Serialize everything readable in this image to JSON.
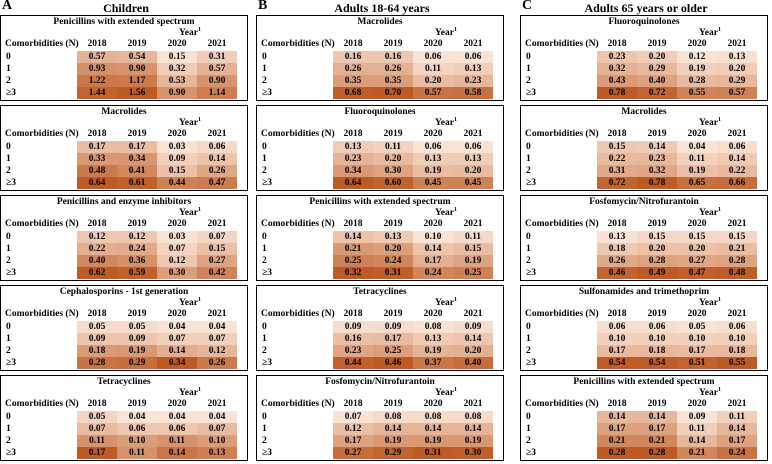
{
  "chart_data": {
    "type": "table",
    "row_header": "Comorbidities (N)",
    "years_label": "Year",
    "years_label_sup": "1",
    "years": [
      "2018",
      "2019",
      "2020",
      "2021"
    ],
    "row_labels": [
      "0",
      "1",
      "2",
      "≥3"
    ],
    "columns": [
      {
        "letter": "A",
        "title": "Children",
        "panels": [
          {
            "title": "Penicillins with extended spectrum",
            "values": [
              [
                "0.57",
                "0.54",
                "0.15",
                "0.31"
              ],
              [
                "0.93",
                "0.90",
                "0.32",
                "0.57"
              ],
              [
                "1.22",
                "1.17",
                "0.53",
                "0.90"
              ],
              [
                "1.44",
                "1.56",
                "0.90",
                "1.14"
              ]
            ]
          },
          {
            "title": "Macrolides",
            "values": [
              [
                "0.17",
                "0.17",
                "0.03",
                "0.06"
              ],
              [
                "0.33",
                "0.34",
                "0.09",
                "0.14"
              ],
              [
                "0.48",
                "0.41",
                "0.15",
                "0.26"
              ],
              [
                "0.64",
                "0.61",
                "0.44",
                "0.47"
              ]
            ]
          },
          {
            "title": "Penicillins and enzyme inhibitors",
            "values": [
              [
                "0.12",
                "0.12",
                "0.03",
                "0.07"
              ],
              [
                "0.22",
                "0.24",
                "0.07",
                "0.15"
              ],
              [
                "0.40",
                "0.36",
                "0.12",
                "0.27"
              ],
              [
                "0.62",
                "0.59",
                "0.30",
                "0.42"
              ]
            ]
          },
          {
            "title": "Cephalosporins - 1st generation",
            "values": [
              [
                "0.05",
                "0.05",
                "0.04",
                "0.04"
              ],
              [
                "0.09",
                "0.09",
                "0.07",
                "0.07"
              ],
              [
                "0.18",
                "0.19",
                "0.14",
                "0.12"
              ],
              [
                "0.28",
                "0.29",
                "0.34",
                "0.26"
              ]
            ]
          },
          {
            "title": "Tetracyclines",
            "values": [
              [
                "0.05",
                "0.04",
                "0.04",
                "0.04"
              ],
              [
                "0.07",
                "0.06",
                "0.06",
                "0.07"
              ],
              [
                "0.11",
                "0.10",
                "0.11",
                "0.10"
              ],
              [
                "0.17",
                "0.11",
                "0.14",
                "0.13"
              ]
            ]
          }
        ]
      },
      {
        "letter": "B",
        "title": "Adults 18-64 years",
        "panels": [
          {
            "title": "Macrolides",
            "values": [
              [
                "0.16",
                "0.16",
                "0.06",
                "0.06"
              ],
              [
                "0.26",
                "0.26",
                "0.11",
                "0.13"
              ],
              [
                "0.35",
                "0.35",
                "0.20",
                "0.23"
              ],
              [
                "0.68",
                "0.70",
                "0.57",
                "0.58"
              ]
            ]
          },
          {
            "title": "Fluoroquinolones",
            "values": [
              [
                "0.13",
                "0.11",
                "0.06",
                "0.06"
              ],
              [
                "0.23",
                "0.20",
                "0.13",
                "0.13"
              ],
              [
                "0.34",
                "0.30",
                "0.19",
                "0.20"
              ],
              [
                "0.64",
                "0.60",
                "0.45",
                "0.45"
              ]
            ]
          },
          {
            "title": "Penicillins with extended spectrum",
            "values": [
              [
                "0.14",
                "0.13",
                "0.10",
                "0.11"
              ],
              [
                "0.21",
                "0.20",
                "0.14",
                "0.15"
              ],
              [
                "0.25",
                "0.24",
                "0.17",
                "0.19"
              ],
              [
                "0.32",
                "0.31",
                "0.24",
                "0.25"
              ]
            ]
          },
          {
            "title": "Tetracyclines",
            "values": [
              [
                "0.09",
                "0.09",
                "0.08",
                "0.09"
              ],
              [
                "0.16",
                "0.17",
                "0.13",
                "0.14"
              ],
              [
                "0.23",
                "0.25",
                "0.19",
                "0.20"
              ],
              [
                "0.44",
                "0.46",
                "0.37",
                "0.40"
              ]
            ]
          },
          {
            "title": "Fosfomycin/Nitrofurantoin",
            "values": [
              [
                "0.07",
                "0.08",
                "0.08",
                "0.08"
              ],
              [
                "0.12",
                "0.14",
                "0.14",
                "0.14"
              ],
              [
                "0.17",
                "0.19",
                "0.19",
                "0.19"
              ],
              [
                "0.27",
                "0.29",
                "0.31",
                "0.30"
              ]
            ]
          }
        ]
      },
      {
        "letter": "C",
        "title": "Adults 65 years or older",
        "panels": [
          {
            "title": "Fluoroquinolones",
            "values": [
              [
                "0.23",
                "0.20",
                "0.12",
                "0.13"
              ],
              [
                "0.32",
                "0.29",
                "0.19",
                "0.20"
              ],
              [
                "0.43",
                "0.40",
                "0.28",
                "0.29"
              ],
              [
                "0.78",
                "0.72",
                "0.55",
                "0.57"
              ]
            ]
          },
          {
            "title": "Macrolides",
            "values": [
              [
                "0.15",
                "0.14",
                "0.04",
                "0.06"
              ],
              [
                "0.22",
                "0.23",
                "0.11",
                "0.14"
              ],
              [
                "0.31",
                "0.32",
                "0.19",
                "0.22"
              ],
              [
                "0.72",
                "0.78",
                "0.65",
                "0.66"
              ]
            ]
          },
          {
            "title": "Fosfomycin/Nitrofurantoin",
            "values": [
              [
                "0.13",
                "0.15",
                "0.15",
                "0.15"
              ],
              [
                "0.18",
                "0.20",
                "0.20",
                "0.21"
              ],
              [
                "0.26",
                "0.28",
                "0.27",
                "0.28"
              ],
              [
                "0.46",
                "0.49",
                "0.47",
                "0.48"
              ]
            ]
          },
          {
            "title": "Sulfonamides and trimethoprim",
            "values": [
              [
                "0.06",
                "0.06",
                "0.05",
                "0.06"
              ],
              [
                "0.10",
                "0.10",
                "0.10",
                "0.10"
              ],
              [
                "0.17",
                "0.18",
                "0.17",
                "0.18"
              ],
              [
                "0.54",
                "0.54",
                "0.51",
                "0.55"
              ]
            ]
          },
          {
            "title": "Penicillins with extended spectrum",
            "values": [
              [
                "0.14",
                "0.14",
                "0.09",
                "0.11"
              ],
              [
                "0.17",
                "0.17",
                "0.11",
                "0.14"
              ],
              [
                "0.21",
                "0.21",
                "0.14",
                "0.17"
              ],
              [
                "0.28",
                "0.28",
                "0.21",
                "0.24"
              ]
            ]
          }
        ]
      }
    ]
  }
}
